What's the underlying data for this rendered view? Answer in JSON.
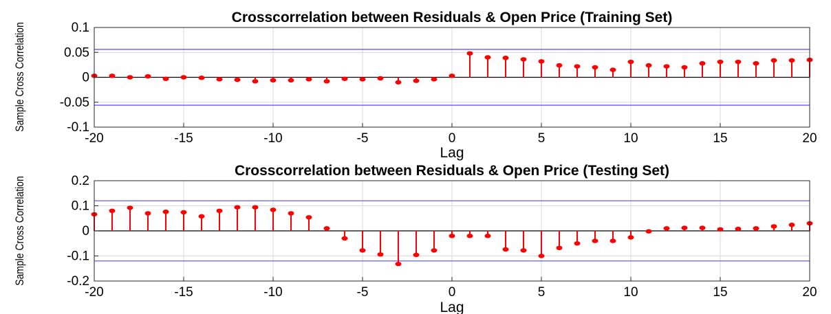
{
  "chart_data": [
    {
      "type": "stem",
      "title": "Crosscorrelation between Residuals & Open Price (Training Set)",
      "xlabel": "Lag",
      "ylabel": "Sample Cross Correlation",
      "xlim": [
        -20,
        20
      ],
      "ylim": [
        -0.1,
        0.1
      ],
      "xticks": [
        -20,
        -15,
        -10,
        -5,
        0,
        5,
        10,
        15,
        20
      ],
      "xtick_labels": [
        "-20",
        "-15",
        "-10",
        "-5",
        "0",
        "5",
        "10",
        "15",
        "20"
      ],
      "yticks": [
        -0.1,
        -0.05,
        0,
        0.05,
        0.1
      ],
      "ytick_labels": [
        "-0.1",
        "-0.05",
        "0",
        "0.05",
        "0.1"
      ],
      "grid": true,
      "confidence_bounds": [
        0.056,
        -0.056
      ],
      "x": [
        -20,
        -19,
        -18,
        -17,
        -16,
        -15,
        -14,
        -13,
        -12,
        -11,
        -10,
        -9,
        -8,
        -7,
        -6,
        -5,
        -4,
        -3,
        -2,
        -1,
        0,
        1,
        2,
        3,
        4,
        5,
        6,
        7,
        8,
        9,
        10,
        11,
        12,
        13,
        14,
        15,
        16,
        17,
        18,
        19,
        20
      ],
      "values": [
        0.003,
        0.003,
        0.0,
        0.002,
        -0.003,
        0.0,
        -0.001,
        -0.004,
        -0.005,
        -0.008,
        -0.006,
        -0.006,
        -0.004,
        -0.008,
        -0.003,
        -0.004,
        -0.002,
        -0.01,
        -0.007,
        -0.004,
        0.003,
        0.048,
        0.04,
        0.039,
        0.036,
        0.032,
        0.024,
        0.022,
        0.02,
        0.015,
        0.031,
        0.024,
        0.022,
        0.02,
        0.028,
        0.031,
        0.031,
        0.028,
        0.034,
        0.034,
        0.035
      ],
      "colors": {
        "stem": "#ff0000",
        "bounds": "#4d4dff",
        "zero_line": "#000000",
        "grid": "#d9d9d9",
        "axes": "#262626"
      }
    },
    {
      "type": "stem",
      "title": "Crosscorrelation between Residuals & Open Price (Testing Set)",
      "xlabel": "Lag",
      "ylabel": "Sample Cross Correlation",
      "xlim": [
        -20,
        20
      ],
      "ylim": [
        -0.2,
        0.2
      ],
      "xticks": [
        -20,
        -15,
        -10,
        -5,
        0,
        5,
        10,
        15,
        20
      ],
      "xtick_labels": [
        "-20",
        "-15",
        "-10",
        "-5",
        "0",
        "5",
        "10",
        "15",
        "20"
      ],
      "yticks": [
        -0.2,
        -0.1,
        0,
        0.1,
        0.2
      ],
      "ytick_labels": [
        "-0.2",
        "-0.1",
        "0",
        "0.1",
        "0.2"
      ],
      "grid": true,
      "confidence_bounds": [
        0.12,
        -0.12
      ],
      "x": [
        -20,
        -19,
        -18,
        -17,
        -16,
        -15,
        -14,
        -13,
        -12,
        -11,
        -10,
        -9,
        -8,
        -7,
        -6,
        -5,
        -4,
        -3,
        -2,
        -1,
        0,
        1,
        2,
        3,
        4,
        5,
        6,
        7,
        8,
        9,
        10,
        11,
        12,
        13,
        14,
        15,
        16,
        17,
        18,
        19,
        20
      ],
      "values": [
        0.066,
        0.08,
        0.092,
        0.07,
        0.076,
        0.074,
        0.058,
        0.08,
        0.094,
        0.094,
        0.084,
        0.07,
        0.054,
        0.01,
        -0.03,
        -0.078,
        -0.094,
        -0.132,
        -0.096,
        -0.078,
        -0.02,
        -0.02,
        -0.02,
        -0.074,
        -0.078,
        -0.1,
        -0.068,
        -0.05,
        -0.04,
        -0.04,
        -0.026,
        -0.002,
        0.01,
        0.012,
        0.012,
        0.006,
        0.008,
        0.01,
        0.018,
        0.024,
        0.03
      ],
      "colors": {
        "stem": "#ff0000",
        "bounds": "#4d4dff",
        "zero_line": "#000000",
        "grid": "#d9d9d9",
        "axes": "#262626"
      }
    }
  ]
}
